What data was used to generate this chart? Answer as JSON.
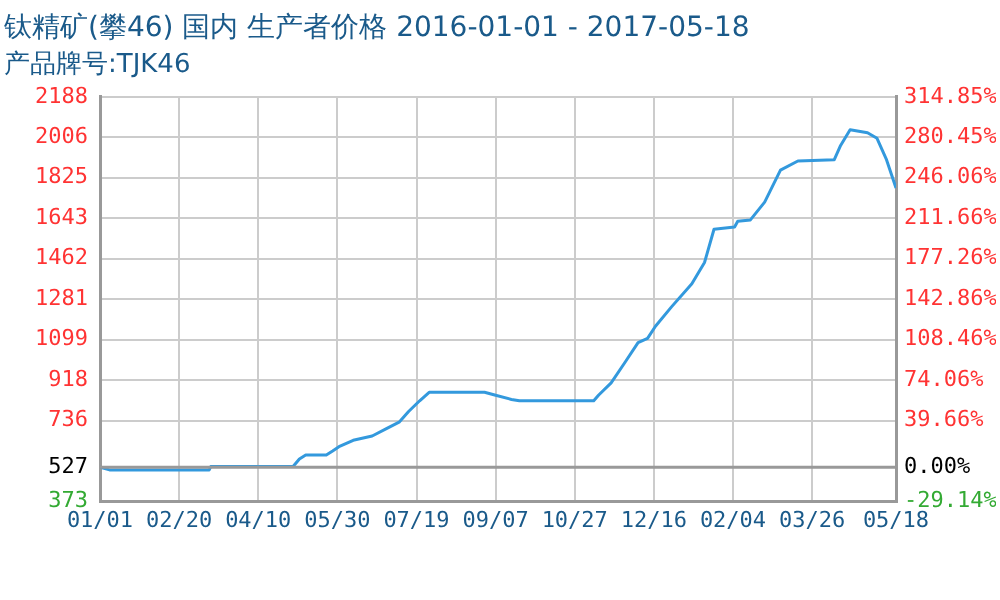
{
  "chart_data": {
    "type": "line",
    "title": "钛精矿(攀46) 国内 生产者价格 2016-01-01 - 2017-05-18",
    "subtitle": "产品牌号:TJK46",
    "x": [
      "2016-01-01",
      "2016-01-07",
      "2016-03-10",
      "2016-03-11",
      "2016-05-02",
      "2016-05-06",
      "2016-05-10",
      "2016-05-23",
      "2016-05-27",
      "2016-05-31",
      "2016-06-09",
      "2016-06-21",
      "2016-06-30",
      "2016-07-08",
      "2016-07-14",
      "2016-07-21",
      "2016-07-27",
      "2016-08-31",
      "2016-09-07",
      "2016-09-17",
      "2016-09-22",
      "2016-11-08",
      "2016-11-11",
      "2016-11-19",
      "2016-11-28",
      "2016-12-06",
      "2016-12-12",
      "2016-12-17",
      "2016-12-27",
      "2017-01-09",
      "2017-01-17",
      "2017-01-23",
      "2017-02-05",
      "2017-02-07",
      "2017-02-15",
      "2017-02-24",
      "2017-03-06",
      "2017-03-17",
      "2017-04-09",
      "2017-04-13",
      "2017-04-19",
      "2017-04-30",
      "2017-05-06",
      "2017-05-12",
      "2017-05-18"
    ],
    "series": [
      {
        "color": "#3399dd",
        "values": [
          527,
          515,
          515,
          530,
          530,
          564,
          582,
          582,
          600,
          619,
          648,
          667,
          700,
          729,
          777,
          825,
          863,
          863,
          850,
          831,
          825,
          825,
          850,
          905,
          1000,
          1086,
          1105,
          1159,
          1245,
          1350,
          1445,
          1594,
          1604,
          1630,
          1636,
          1716,
          1859,
          1900,
          1906,
          1970,
          2040,
          2027,
          2002,
          1906,
          1779
        ]
      }
    ],
    "xlim": [
      "2016-01-01",
      "2017-05-18"
    ],
    "xticks": [
      {
        "value": "2016-01-01",
        "label": "01/01"
      },
      {
        "value": "2016-02-20",
        "label": "02/20"
      },
      {
        "value": "2016-04-10",
        "label": "04/10"
      },
      {
        "value": "2016-05-30",
        "label": "05/30"
      },
      {
        "value": "2016-07-19",
        "label": "07/19"
      },
      {
        "value": "2016-09-07",
        "label": "09/07"
      },
      {
        "value": "2016-10-27",
        "label": "10/27"
      },
      {
        "value": "2016-12-16",
        "label": "12/16"
      },
      {
        "value": "2017-02-04",
        "label": "02/04"
      },
      {
        "value": "2017-03-26",
        "label": "03/26"
      },
      {
        "value": "2017-05-18",
        "label": "05/18"
      }
    ],
    "ylim": [
      373,
      2188
    ],
    "yticks": [
      373,
      527,
      736,
      918,
      1099,
      1281,
      1462,
      1643,
      1825,
      2006,
      2188
    ],
    "y2lim": [
      -29.14,
      314.85
    ],
    "y2ticks": [
      {
        "value": -29.14,
        "label": "-29.14%"
      },
      {
        "value": 0,
        "label": "0.00%"
      },
      {
        "value": 39.66,
        "label": "39.66%"
      },
      {
        "value": 74.06,
        "label": "74.06%"
      },
      {
        "value": 108.46,
        "label": "108.46%"
      },
      {
        "value": 142.86,
        "label": "142.86%"
      },
      {
        "value": 177.26,
        "label": "177.26%"
      },
      {
        "value": 211.66,
        "label": "211.66%"
      },
      {
        "value": 246.06,
        "label": "246.06%"
      },
      {
        "value": 280.45,
        "label": "280.45%"
      },
      {
        "value": 314.85,
        "label": "314.85%"
      }
    ],
    "ref_lines": [
      {
        "axis": "y",
        "value": 527,
        "color": "#999999",
        "line_style": "solid"
      }
    ],
    "grid": true,
    "marker": "none",
    "line_style": "solid"
  }
}
